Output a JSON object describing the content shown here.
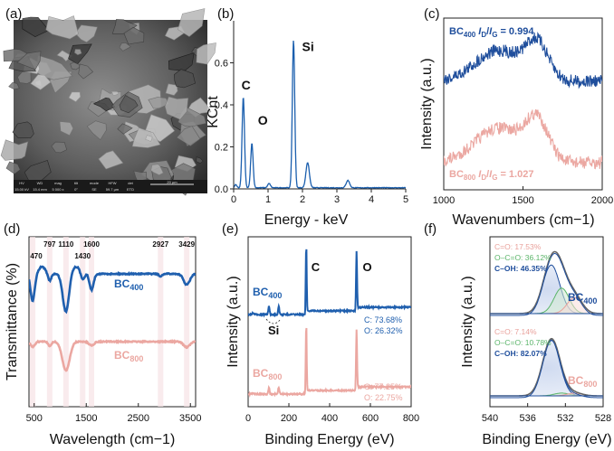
{
  "chart_data": [
    {
      "panel": "(a)",
      "type": "image",
      "caption": "SEM micrograph",
      "info_bar": [
        "HV",
        "WD",
        "mag",
        "tilt",
        "mode",
        "HFW",
        "det"
      ],
      "info_vals": [
        "15.00 kV",
        "15.4 mm",
        "5 000 x",
        "0°",
        "SE",
        "59.7 µm",
        "ETD"
      ],
      "scale_label": "20 µm"
    },
    {
      "panel": "(b)",
      "type": "line",
      "xlabel": "Energy - keV",
      "ylabel": "KCnt",
      "xlim": [
        0,
        5
      ],
      "ylim": [
        0,
        0.8
      ],
      "xticks": [
        0,
        1,
        2,
        3,
        4,
        5
      ],
      "yticks": [
        0.0,
        0.2,
        0.4,
        0.6
      ],
      "peaks": [
        {
          "label": "C",
          "x": 0.28,
          "y": 0.43
        },
        {
          "label": "O",
          "x": 0.53,
          "y": 0.21
        },
        {
          "label": "Si",
          "x": 1.74,
          "y": 0.7
        },
        {
          "label": "",
          "x": 2.15,
          "y": 0.12
        }
      ]
    },
    {
      "panel": "(c)",
      "type": "line",
      "xlabel": "Wavenumbers (cm−1)",
      "ylabel": "Intensity (a.u.)",
      "xlim": [
        1000,
        2000
      ],
      "xticks": [
        1000,
        1500,
        2000
      ],
      "series": [
        {
          "name": "BC400",
          "label_prefix": "BC",
          "label_sub": "400",
          "ratio": "I",
          "ratio_sub": "D",
          "ratio_den": "I",
          "ratio_den_sub": "G",
          "value": "= 0.994",
          "color": "#1f4e9c"
        },
        {
          "name": "BC800",
          "label_prefix": "BC",
          "label_sub": "800",
          "ratio": "I",
          "ratio_sub": "D",
          "ratio_den": "I",
          "ratio_den_sub": "G",
          "value": "= 1.027",
          "color": "#eba7a1"
        }
      ],
      "bands": [
        {
          "name": "D",
          "x": 1350
        },
        {
          "name": "G",
          "x": 1590
        }
      ]
    },
    {
      "panel": "(d)",
      "type": "line",
      "xlabel": "Wavelength (cm−1)",
      "ylabel": "Transmittance (%)",
      "xlim": [
        400,
        3600
      ],
      "xticks": [
        500,
        1500,
        2500,
        3500
      ],
      "peak_labels": [
        "470",
        "797",
        "1110",
        "1430",
        "1600",
        "2927",
        "3429"
      ],
      "series": [
        {
          "name": "BC400",
          "label_prefix": "BC",
          "label_sub": "400",
          "color": "#1f5fae"
        },
        {
          "name": "BC800",
          "label_prefix": "BC",
          "label_sub": "800",
          "color": "#eba7a1"
        }
      ]
    },
    {
      "panel": "(e)",
      "type": "line",
      "xlabel": "Binding Energy (eV)",
      "ylabel": "Intensity (a.u.)",
      "xlim": [
        0,
        800
      ],
      "xticks": [
        0,
        200,
        400,
        600,
        800
      ],
      "peak_labels": [
        "C",
        "O",
        "Si"
      ],
      "series": [
        {
          "name": "BC400",
          "label_prefix": "BC",
          "label_sub": "400",
          "color": "#1f5fae",
          "comp": [
            "C: 73.68%",
            "O: 26.32%"
          ]
        },
        {
          "name": "BC800",
          "label_prefix": "BC",
          "label_sub": "800",
          "color": "#eba7a1",
          "comp": [
            "C: 77.25%",
            "O: 22.75%"
          ]
        }
      ]
    },
    {
      "panel": "(f)",
      "type": "line",
      "xlabel": "Binding Energy (eV)",
      "ylabel": "Intensity (a.u.)",
      "xlim": [
        540,
        528
      ],
      "xticks": [
        540,
        536,
        532,
        528
      ],
      "series": [
        {
          "name": "BC400",
          "label_prefix": "BC",
          "label_sub": "400",
          "components": [
            {
              "label": "C=O: 17.53%",
              "color": "#e9a19b"
            },
            {
              "label": "O–C=O: 36.12%",
              "color": "#5bb56a"
            },
            {
              "label": "C–OH: 46.35%",
              "color": "#1f4e9c"
            }
          ]
        },
        {
          "name": "BC800",
          "label_prefix": "BC",
          "label_sub": "800",
          "components": [
            {
              "label": "C=O: 7.14%",
              "color": "#e9a19b"
            },
            {
              "label": "O–C=O: 10.78%",
              "color": "#5bb56a"
            },
            {
              "label": "C–OH: 82.07%",
              "color": "#1f4e9c"
            }
          ]
        }
      ]
    }
  ]
}
